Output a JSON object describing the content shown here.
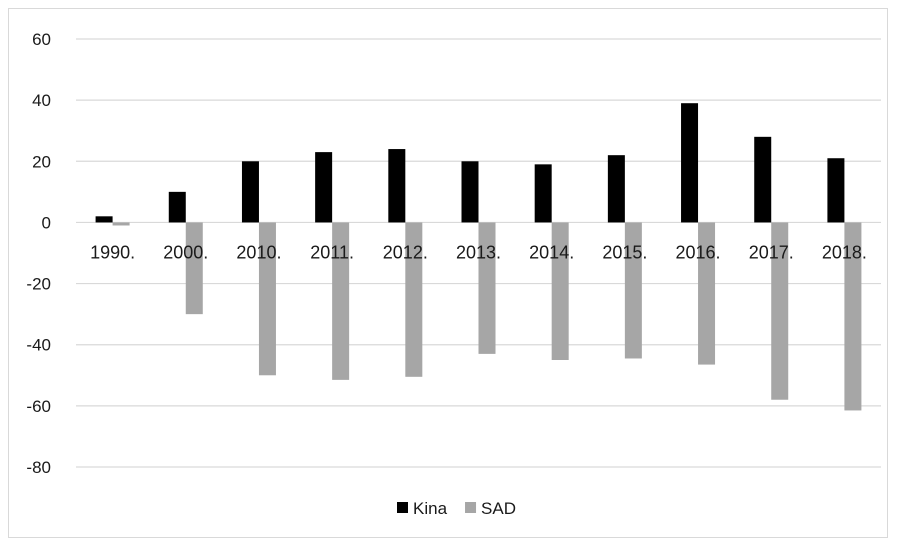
{
  "chart_data": {
    "type": "bar",
    "categories": [
      "1990.",
      "2000.",
      "2010.",
      "2011.",
      "2012.",
      "2013.",
      "2014.",
      "2015.",
      "2016.",
      "2017.",
      "2018."
    ],
    "series": [
      {
        "name": "Kina",
        "color": "#000000",
        "values": [
          2,
          10,
          20,
          23,
          24,
          20,
          19,
          22,
          39,
          28,
          21
        ]
      },
      {
        "name": "SAD",
        "color": "#a6a6a6",
        "values": [
          -1,
          -30,
          -50,
          -51.5,
          -50.5,
          -43,
          -45,
          -44.5,
          -46.5,
          -58,
          -61.5
        ]
      }
    ],
    "yticks": [
      "60",
      "40",
      "20",
      "0",
      "-20",
      "-40",
      "-60",
      "-80"
    ],
    "ylim": [
      -80,
      60
    ],
    "grid": true,
    "legend": "bottom-center",
    "title": "",
    "xlabel": "",
    "ylabel": ""
  }
}
